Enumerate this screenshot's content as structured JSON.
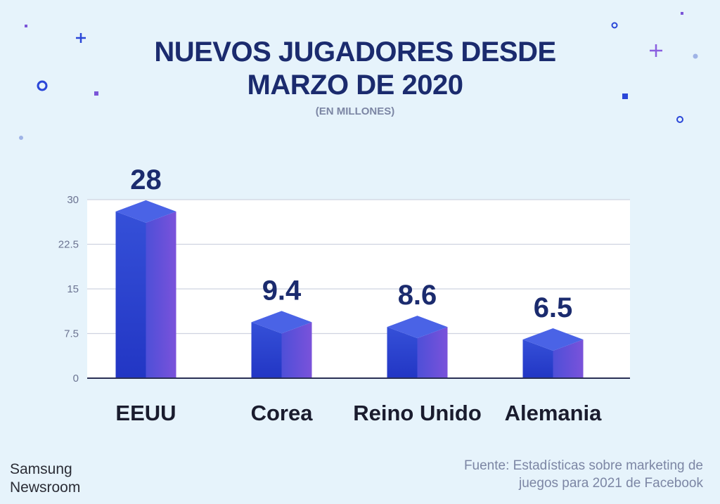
{
  "header": {
    "title_line1": "NUEVOS JUGADORES DESDE",
    "title_line2": "MARZO DE 2020",
    "subtitle": "(EN MILLONES)"
  },
  "chart_data": {
    "type": "bar",
    "title": "NUEVOS JUGADORES DESDE MARZO DE 2020",
    "subtitle": "(EN MILLONES)",
    "categories": [
      "EEUU",
      "Corea",
      "Reino Unido",
      "Alemania"
    ],
    "values": [
      28,
      9.4,
      8.6,
      6.5
    ],
    "value_labels": [
      "28",
      "9.4",
      "8.6",
      "6.5"
    ],
    "yticks": [
      0,
      7.5,
      15,
      22.5,
      30
    ],
    "ytick_labels": [
      "0",
      "7.5",
      "15",
      "22.5",
      "30"
    ],
    "ylim": [
      0,
      30
    ],
    "xlabel": "",
    "ylabel": "",
    "grid": true,
    "legend": "none"
  },
  "footer": {
    "brand_line1": "Samsung",
    "brand_line2": "Newsroom",
    "source_line1": "Fuente:  Estadísticas sobre marketing de",
    "source_line2": "juegos para 2021 de Facebook"
  },
  "colors": {
    "background": "#e6f3fb",
    "title": "#1b2b6e",
    "bar_front": "#2c40cc",
    "bar_side": "#6a4fd6",
    "bar_top": "#4a63e6",
    "grid": "#cfd3e0",
    "axis": "#2a2f55"
  }
}
